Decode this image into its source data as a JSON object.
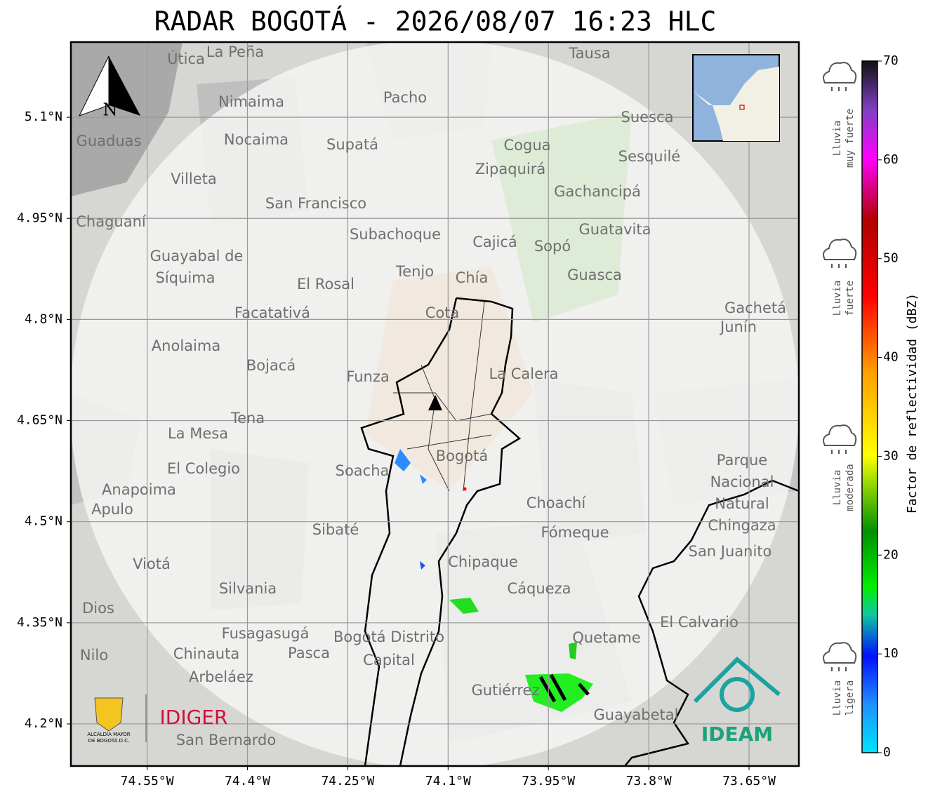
{
  "title": "RADAR BOGOTÁ - 2026/08/07 16:23 HLC",
  "map": {
    "xlim": [
      -74.664,
      -73.5755
    ],
    "ylim": [
      4.1375,
      5.2115
    ],
    "xticks": [
      {
        "value": -74.55,
        "label": "74.55°W"
      },
      {
        "value": -74.4,
        "label": "74.4°W"
      },
      {
        "value": -74.25,
        "label": "74.25°W"
      },
      {
        "value": -74.1,
        "label": "74.1°W"
      },
      {
        "value": -73.95,
        "label": "73.95°W"
      },
      {
        "value": -73.8,
        "label": "73.8°W"
      },
      {
        "value": -73.65,
        "label": "73.65°W"
      }
    ],
    "yticks": [
      {
        "value": 5.1,
        "label": "5.1°N"
      },
      {
        "value": 4.95,
        "label": "4.95°N"
      },
      {
        "value": 4.8,
        "label": "4.8°N"
      },
      {
        "value": 4.65,
        "label": "4.65°N"
      },
      {
        "value": 4.5,
        "label": "4.5°N"
      },
      {
        "value": 4.35,
        "label": "4.35°N"
      },
      {
        "value": 4.2,
        "label": "4.2°N"
      }
    ],
    "grid": true,
    "north": "N",
    "places": [
      "La Peña",
      "Útica",
      "Tausa",
      "Pacho",
      "Nimaima",
      "Suesca",
      "Nocaima",
      "Guaduas",
      "Supatá",
      "Cogua",
      "Sesquilé",
      "Zipaquirá",
      "Villeta",
      "Gachancipá",
      "San Francisco",
      "Chaguaní",
      "Guatavita",
      "Subachoque",
      "Cajicá",
      "Sopó",
      "Guayabal de",
      "Síquima",
      "Tenjo",
      "Chía",
      "Guasca",
      "El Rosal",
      "Cota",
      "Gachetá",
      "Junín",
      "Facatativá",
      "Anolaima",
      "Bojacá",
      "Funza",
      "La Calera",
      "Tena",
      "La Mesa",
      "Bogotá",
      "El Colegio",
      "Soacha",
      "Parque",
      "Nacional",
      "Natural",
      "Chingaza",
      "Anapoima",
      "Apulo",
      "Choachí",
      "Fómeque",
      "Sibaté",
      "San Juanito",
      "Viotá",
      "Chipaque",
      "Silvania",
      "Cáqueza",
      "Dios",
      "El Calvario",
      "Fusagasugá",
      "Bogotá Distrito",
      "Capital",
      "Quetame",
      "Nilo",
      "Chinauta",
      "Pasca",
      "Arbeláez",
      "Gutiérrez",
      "Guayabetal",
      "San Bernardo"
    ]
  },
  "colorbar": {
    "label": "Factor de reflectividad (dBZ)",
    "lim": [
      0,
      70
    ],
    "ticks": [
      0,
      10,
      20,
      30,
      40,
      50,
      60,
      70
    ],
    "categories": [
      [
        "Lluvia",
        "muy fuerte"
      ],
      [
        "Lluvia",
        "fuerte"
      ],
      [
        "Lluvia",
        "moderada"
      ],
      [
        "Lluvia",
        "ligera"
      ]
    ]
  },
  "logos": {
    "alcaldia": [
      "ALCALDÍA MAYOR",
      "DE BOGOTÁ D.C."
    ],
    "idiger": "IDIGER",
    "ideam": "IDEAM"
  }
}
